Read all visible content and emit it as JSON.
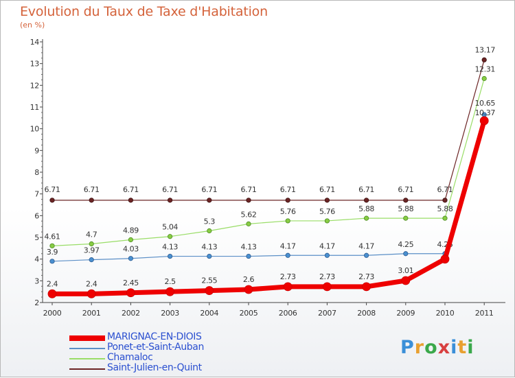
{
  "header": {
    "title": "Evolution du Taux de Taxe d'Habitation",
    "unit": "(en %)"
  },
  "brand": {
    "letters": [
      "P",
      "r",
      "o",
      "x",
      "i",
      "t",
      "i"
    ],
    "colors": [
      "#3a8fd8",
      "#e8a030",
      "#3aa84a",
      "#d84040",
      "#3a8fd8",
      "#e8a030",
      "#3aa84a"
    ]
  },
  "chart_data": {
    "type": "line",
    "title": "Evolution du Taux de Taxe d'Habitation",
    "ylabel": "(en %)",
    "x": [
      "2000",
      "2001",
      "2002",
      "2003",
      "2004",
      "2005",
      "2006",
      "2007",
      "2008",
      "2009",
      "2010",
      "2011"
    ],
    "ylim": [
      2,
      14
    ],
    "yticks": [
      "2",
      "3",
      "4",
      "5",
      "6",
      "7",
      "8",
      "9",
      "10",
      "11",
      "12",
      "13",
      "14"
    ],
    "grid": false,
    "legend_position": "bottom-left",
    "series": [
      {
        "key": "saint_julien",
        "name": "Saint-Julien-en-Quint",
        "color": "#6b2424",
        "values": [
          6.71,
          6.71,
          6.71,
          6.71,
          6.71,
          6.71,
          6.71,
          6.71,
          6.71,
          6.71,
          6.71,
          13.17
        ],
        "labels": [
          "6.71",
          "6.71",
          "6.71",
          "6.71",
          "6.71",
          "6.71",
          "6.71",
          "6.71",
          "6.71",
          "6.71",
          "6.71",
          "13.17"
        ]
      },
      {
        "key": "chamaloc",
        "name": "Chamaloc",
        "color": "#99dd66",
        "values": [
          4.61,
          4.7,
          4.89,
          5.04,
          5.3,
          5.62,
          5.76,
          5.76,
          5.88,
          5.88,
          5.88,
          12.31
        ],
        "labels": [
          "4.61",
          "4.7",
          "4.89",
          "5.04",
          "5.3",
          "5.62",
          "5.76",
          "5.76",
          "5.88",
          "5.88",
          "5.88",
          "12.31"
        ]
      },
      {
        "key": "ponet",
        "name": "Ponet-et-Saint-Auban",
        "color": "#5b8fc7",
        "values": [
          3.9,
          3.97,
          4.03,
          4.13,
          4.13,
          4.13,
          4.17,
          4.17,
          4.17,
          4.25,
          4.25,
          10.65
        ],
        "labels": [
          "3.9",
          "3.97",
          "4.03",
          "4.13",
          "4.13",
          "4.13",
          "4.17",
          "4.17",
          "4.17",
          "4.25",
          "4.25",
          "10.65"
        ]
      },
      {
        "key": "marignac",
        "name": "MARIGNAC-EN-DIOIS",
        "color": "#ee0000",
        "values": [
          2.4,
          2.4,
          2.45,
          2.5,
          2.55,
          2.6,
          2.73,
          2.73,
          2.73,
          3.01,
          4,
          10.37
        ],
        "labels": [
          "2.4",
          "2.4",
          "2.45",
          "2.5",
          "2.55",
          "2.6",
          "2.73",
          "2.73",
          "2.73",
          "3.01",
          "",
          "10.37"
        ]
      }
    ],
    "legend": [
      {
        "key": "marignac",
        "name": "MARIGNAC-EN-DIOIS",
        "color": "#ee0000"
      },
      {
        "key": "ponet",
        "name": "Ponet-et-Saint-Auban",
        "color": "#5b8fc7"
      },
      {
        "key": "chamaloc",
        "name": "Chamaloc",
        "color": "#99dd66"
      },
      {
        "key": "saint_julien",
        "name": "Saint-Julien-en-Quint",
        "color": "#6b2424"
      }
    ]
  }
}
